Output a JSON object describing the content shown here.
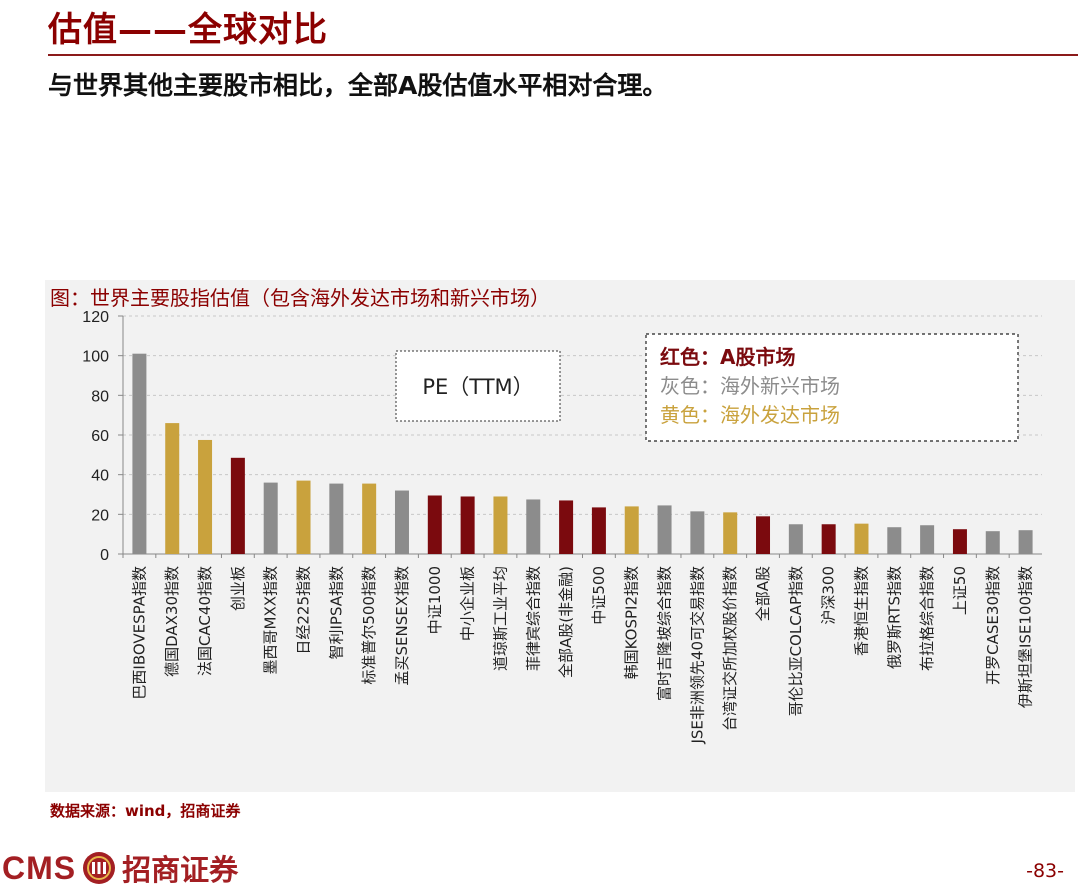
{
  "header": {
    "title": "估值——全球对比",
    "subtitle": "与世界其他主要股市相比，全部A股估值水平相对合理。"
  },
  "chart_caption": "图：世界主要股指估值（包含海外发达市场和新兴市场）",
  "chart_data": {
    "type": "bar",
    "title": "",
    "ylim": [
      0,
      120
    ],
    "yticks": [
      0,
      20,
      40,
      60,
      80,
      100,
      120
    ],
    "grid": true,
    "metric_box": "PE（TTM）",
    "legend": {
      "placement": "top-right",
      "items": [
        {
          "prefix": "红色：",
          "label": "A股市场",
          "group": "a_share"
        },
        {
          "prefix": "灰色：",
          "label": "海外新兴市场",
          "group": "emerging"
        },
        {
          "prefix": "黄色：",
          "label": "海外发达市场",
          "group": "developed"
        }
      ]
    },
    "colors": {
      "a_share": "#7b0a0e",
      "emerging": "#8c8c8c",
      "developed": "#c9a23d"
    },
    "categories": [
      "巴西IBOVESPA指数",
      "德国DAX30指数",
      "法国CAC40指数",
      "创业板",
      "墨西哥MXX指数",
      "日经225指数",
      "智利IPSA指数",
      "标准普尔500指数",
      "孟买SENSEX指数",
      "中证1000",
      "中小企业板",
      "道琼斯工业平均",
      "菲律宾综合指数",
      "全部A股(非金融)",
      "中证500",
      "韩国KOSPI2指数",
      "富时吉隆坡综合指数",
      "JSE非洲领先40可交易指数",
      "台湾证交所加权股价指数",
      "全部A股",
      "哥伦比亚COLCAP指数",
      "沪深300",
      "香港恒生指数",
      "俄罗斯RTS指数",
      "布拉格综合指数",
      "上证50",
      "开罗CASE30指数",
      "伊斯坦堡ISE100指数"
    ],
    "values": [
      101,
      66,
      57.5,
      48.5,
      36,
      37,
      35.5,
      35.5,
      32,
      29.5,
      29,
      29,
      27.5,
      27,
      23.5,
      24,
      24.5,
      21.5,
      21,
      19,
      15,
      15,
      15.3,
      13.5,
      14.5,
      12.5,
      11.5,
      12
    ],
    "groups": [
      "emerging",
      "developed",
      "developed",
      "a_share",
      "emerging",
      "developed",
      "emerging",
      "developed",
      "emerging",
      "a_share",
      "a_share",
      "developed",
      "emerging",
      "a_share",
      "a_share",
      "developed",
      "emerging",
      "emerging",
      "developed",
      "a_share",
      "emerging",
      "a_share",
      "developed",
      "emerging",
      "emerging",
      "a_share",
      "emerging",
      "emerging"
    ]
  },
  "footer": {
    "source": "数据来源：wind，招商证券",
    "logo_latin": "CMS",
    "logo_cn": "招商证券",
    "page_number": "-83-"
  }
}
